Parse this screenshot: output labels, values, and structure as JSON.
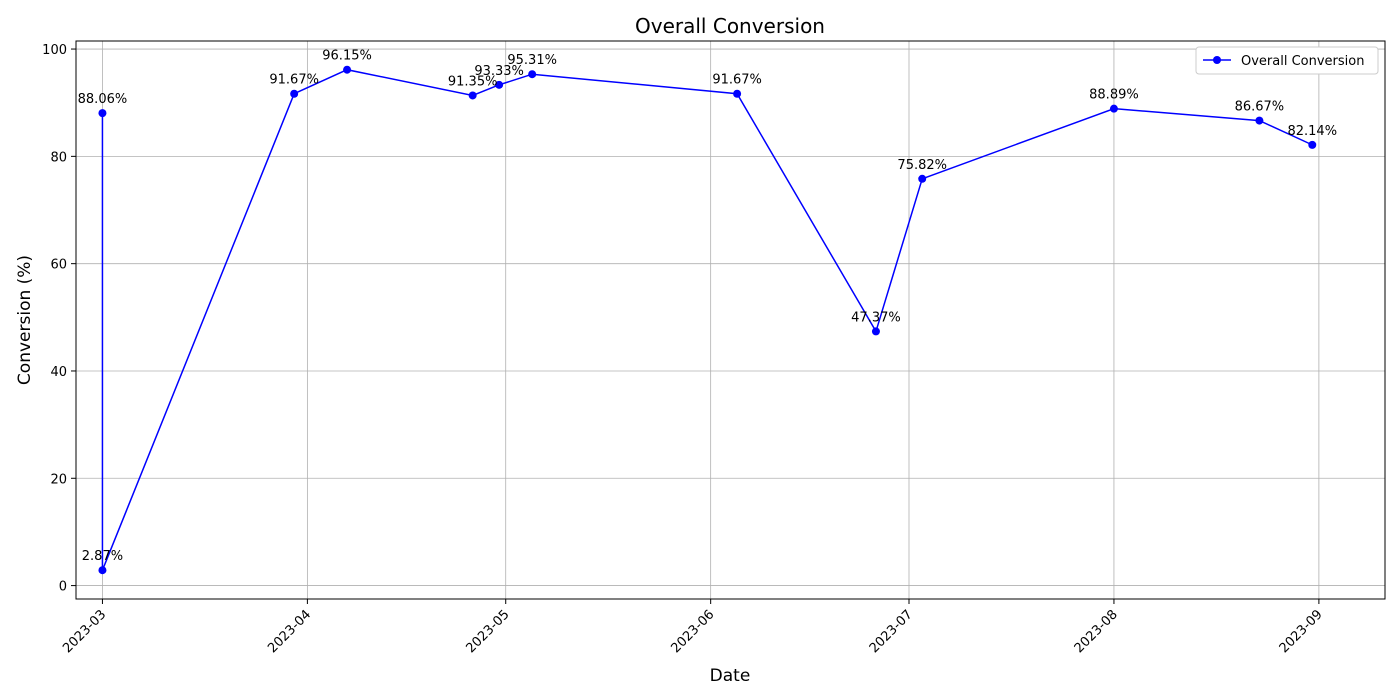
{
  "chart_data": {
    "type": "line",
    "title": "Overall Conversion",
    "xlabel": "Date",
    "ylabel": "Conversion (%)",
    "x_range": [
      "2023-02-25",
      "2023-09-11"
    ],
    "ylim": [
      -2.5,
      101.5
    ],
    "grid": true,
    "legend_position": "top-right",
    "x_ticks": [
      {
        "date": "2023-03-01",
        "label": "2023-03"
      },
      {
        "date": "2023-04-01",
        "label": "2023-04"
      },
      {
        "date": "2023-05-01",
        "label": "2023-05"
      },
      {
        "date": "2023-06-01",
        "label": "2023-06"
      },
      {
        "date": "2023-07-01",
        "label": "2023-07"
      },
      {
        "date": "2023-08-01",
        "label": "2023-08"
      },
      {
        "date": "2023-09-01",
        "label": "2023-09"
      }
    ],
    "y_ticks": [
      0,
      20,
      40,
      60,
      80,
      100
    ],
    "series": [
      {
        "name": "Overall Conversion",
        "color": "#0000ff",
        "marker": "circle"
      }
    ],
    "annotations": [
      {
        "x": "2023-03-01",
        "y": 88.06,
        "label": "88.06%"
      },
      {
        "x": "2023-03-30",
        "y": 91.67,
        "label": "91.67%"
      },
      {
        "x": "2023-04-07",
        "y": 96.15,
        "label": "96.15%"
      },
      {
        "x": "2023-04-26",
        "y": 91.35,
        "label": "91.35%"
      },
      {
        "x": "2023-04-30",
        "y": 93.33,
        "label": "93.33%"
      },
      {
        "x": "2023-05-05",
        "y": 95.31,
        "label": "95.31%"
      },
      {
        "x": "2023-06-05",
        "y": 91.67,
        "label": "91.67%"
      },
      {
        "x": "2023-07-03",
        "y": 75.82,
        "label": "75.82%"
      },
      {
        "x": "2023-06-26",
        "y": 47.37,
        "label": "47.37%"
      },
      {
        "x": "2023-08-01",
        "y": 88.89,
        "label": "88.89%"
      },
      {
        "x": "2023-08-23",
        "y": 86.67,
        "label": "86.67%"
      },
      {
        "x": "2023-08-31",
        "y": 82.14,
        "label": "82.14%"
      },
      {
        "x": "2023-03-01",
        "y": 2.87,
        "label": "2.87%"
      }
    ]
  }
}
